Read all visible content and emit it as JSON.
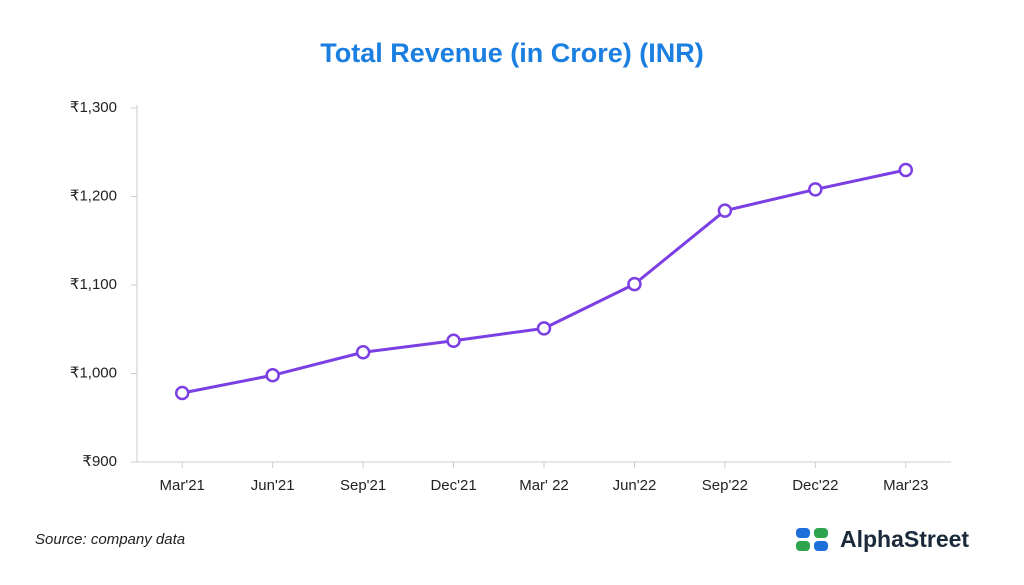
{
  "chart_data": {
    "type": "line",
    "title": "Total Revenue (in Crore) (INR)",
    "categories": [
      "Mar'21",
      "Jun'21",
      "Sep'21",
      "Dec'21",
      "Mar' 22",
      "Jun'22",
      "Sep'22",
      "Dec'22",
      "Mar'23"
    ],
    "series": [
      {
        "name": "Total Revenue",
        "color": "#7b3fe4",
        "values": [
          978,
          998,
          1024,
          1037,
          1051,
          1101,
          1184,
          1208,
          1230
        ]
      }
    ],
    "ylim": [
      900,
      1300
    ],
    "yticks": [
      {
        "value": 900,
        "label": "₹900"
      },
      {
        "value": 1000,
        "label": "₹1,000"
      },
      {
        "value": 1100,
        "label": "₹1,100"
      },
      {
        "value": 1200,
        "label": "₹1,200"
      },
      {
        "value": 1300,
        "label": "₹1,300"
      }
    ],
    "grid": false,
    "source": "Source: company data",
    "brand": "AlphaStreet"
  }
}
